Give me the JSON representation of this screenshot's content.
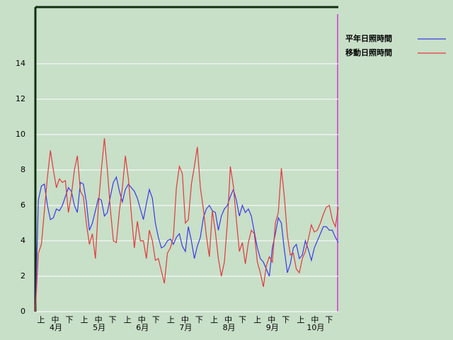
{
  "chart_data": {
    "type": "line",
    "dekad_labels": [
      "上",
      "中",
      "下",
      "上",
      "中",
      "下",
      "上",
      "中",
      "下",
      "上",
      "中",
      "下",
      "上",
      "中",
      "下",
      "上",
      "中",
      "下",
      "上",
      "中",
      "下"
    ],
    "month_labels": [
      "4月",
      "5月",
      "6月",
      "7月",
      "8月",
      "9月",
      "10月"
    ],
    "ylim": [
      0,
      17.2
    ],
    "yticks": [
      0,
      2,
      4,
      6,
      8,
      10,
      12,
      14
    ],
    "grid": true,
    "legend": "top-right",
    "series": [
      {
        "name": "平年日照時間",
        "color": "#3a3ae8",
        "values": [
          0,
          6.3,
          7.1,
          7.2,
          6.0,
          5.2,
          5.3,
          5.8,
          5.7,
          6.0,
          6.5,
          7.0,
          6.8,
          6.0,
          5.6,
          7.3,
          7.2,
          6.2,
          4.6,
          5.0,
          5.7,
          6.4,
          6.3,
          5.4,
          5.6,
          6.5,
          7.3,
          7.6,
          6.8,
          6.2,
          6.9,
          7.2,
          7.0,
          6.8,
          6.4,
          5.8,
          5.2,
          6.1,
          6.9,
          6.4,
          5.0,
          4.2,
          3.6,
          3.7,
          4.0,
          4.1,
          3.8,
          4.2,
          4.4,
          3.7,
          3.4,
          4.8,
          4.0,
          3.0,
          3.7,
          4.2,
          5.3,
          5.8,
          6.0,
          5.7,
          5.6,
          4.6,
          5.4,
          5.8,
          6.0,
          6.5,
          6.9,
          6.3,
          5.4,
          6.0,
          5.6,
          5.8,
          5.4,
          4.5,
          3.6,
          3.0,
          2.8,
          2.4,
          2.0,
          3.6,
          4.4,
          5.3,
          5.0,
          3.5,
          2.2,
          2.7,
          3.6,
          3.8,
          3.0,
          3.2,
          4.0,
          3.5,
          2.9,
          3.6,
          4.0,
          4.4,
          4.8,
          4.8,
          4.6,
          4.6,
          4.2,
          3.9
        ]
      },
      {
        "name": "移動日照時間",
        "color": "#e03a3a",
        "values": [
          0,
          3.3,
          3.8,
          5.7,
          7.6,
          9.1,
          8.0,
          7.0,
          7.5,
          7.3,
          7.4,
          5.6,
          6.6,
          8.0,
          8.8,
          6.8,
          6.5,
          5.0,
          3.8,
          4.4,
          3.0,
          6.0,
          8.0,
          9.8,
          8.0,
          5.8,
          4.0,
          3.9,
          5.7,
          7.0,
          8.8,
          7.5,
          5.5,
          3.6,
          5.1,
          4.0,
          4.0,
          3.0,
          4.6,
          4.0,
          2.9,
          3.0,
          2.3,
          1.6,
          3.3,
          3.6,
          4.2,
          7.0,
          8.2,
          7.8,
          5.0,
          5.2,
          7.2,
          8.2,
          9.3,
          7.0,
          5.8,
          4.3,
          3.1,
          5.7,
          4.5,
          3.0,
          2.0,
          2.8,
          5.0,
          8.2,
          7.1,
          5.2,
          3.4,
          3.9,
          2.7,
          3.9,
          4.6,
          4.4,
          2.8,
          2.2,
          1.4,
          2.6,
          3.1,
          2.8,
          5.0,
          5.6,
          8.1,
          6.5,
          4.3,
          3.2,
          3.3,
          2.4,
          2.2,
          3.0,
          3.4,
          4.1,
          4.9,
          4.5,
          4.6,
          5.0,
          5.5,
          5.9,
          6.0,
          5.2,
          4.8,
          5.9
        ]
      }
    ]
  }
}
